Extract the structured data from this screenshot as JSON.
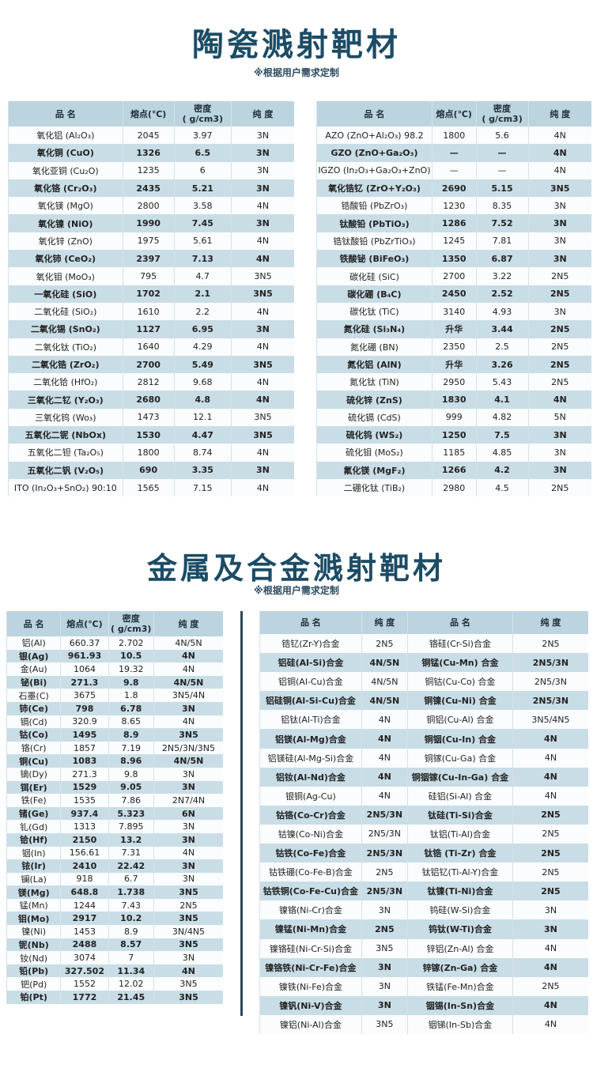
{
  "ceramic": {
    "title": "陶瓷溅射靶材",
    "subtitle": "※根据用户需求定制",
    "headers": [
      "品 名",
      "熔点(℃)",
      "密度\n( g/cm3)",
      "纯 度"
    ],
    "left_rows": [
      [
        "氧化铝 (Al₂O₃)",
        "2045",
        "3.97",
        "3N"
      ],
      [
        "氧化铜 (CuO)",
        "1326",
        "6.5",
        "3N"
      ],
      [
        "氧化亚铜 (Cu₂O)",
        "1235",
        "6",
        "3N"
      ],
      [
        "氧化铬 (Cr₂O₃)",
        "2435",
        "5.21",
        "3N"
      ],
      [
        "氧化镁 (MgO)",
        "2800",
        "3.58",
        "4N"
      ],
      [
        "氧化镍 (NiO)",
        "1990",
        "7.45",
        "3N"
      ],
      [
        "氧化锌 (ZnO)",
        "1975",
        "5.61",
        "4N"
      ],
      [
        "氧化铈 (CeO₂)",
        "2397",
        "7.13",
        "4N"
      ],
      [
        "氧化钼 (MoO₃)",
        "795",
        "4.7",
        "3N5"
      ],
      [
        "一氧化硅 (SiO)",
        "1702",
        "2.1",
        "3N5"
      ],
      [
        "二氧化硅 (SiO₂)",
        "1610",
        "2.2",
        "4N"
      ],
      [
        "二氧化锡 (SnO₂)",
        "1127",
        "6.95",
        "3N"
      ],
      [
        "二氧化钛 (TiO₂)",
        "1640",
        "4.29",
        "4N"
      ],
      [
        "二氧化锆 (ZrO₂)",
        "2700",
        "5.49",
        "3N5"
      ],
      [
        "二氧化铪 (HfO₂)",
        "2812",
        "9.68",
        "4N"
      ],
      [
        "三氧化二钇 (Y₂O₃)",
        "2680",
        "4.8",
        "4N"
      ],
      [
        "三氧化钨 (Wo₃)",
        "1473",
        "12.1",
        "3N5"
      ],
      [
        "五氧化二铌 (NbOx)",
        "1530",
        "4.47",
        "3N5"
      ],
      [
        "五氧化二钽 (Ta₂O₅)",
        "1800",
        "8.74",
        "4N"
      ],
      [
        "五氧化二钒 (V₂O₅)",
        "690",
        "3.35",
        "3N"
      ],
      [
        "ITO (In₂O₃+SnO₂) 90:10",
        "1565",
        "7.15",
        "4N"
      ]
    ],
    "right_rows": [
      [
        "AZO (ZnO+Al₂O₃) 98.2",
        "1800",
        "5.6",
        "4N"
      ],
      [
        "GZO (ZnO+Ga₂O₃)",
        "—",
        "—",
        "4N"
      ],
      [
        "IGZO (In₂O₃+Ga₂O₃+ZnO)",
        "—",
        "—",
        "4N"
      ],
      [
        "氧化锆钇 (ZrO+Y₂O₃)",
        "2690",
        "5.15",
        "3N5"
      ],
      [
        "锆酸铅 (PbZrO₃)",
        "1230",
        "8.35",
        "3N"
      ],
      [
        "钛酸铅 (PbTiO₃)",
        "1286",
        "7.52",
        "3N"
      ],
      [
        "锆钛酸铅 (PbZrTiO₃)",
        "1245",
        "7.81",
        "3N"
      ],
      [
        "铁酸铋 (BiFeO₃)",
        "1350",
        "6.87",
        "3N"
      ],
      [
        "碳化硅 (SiC)",
        "2700",
        "3.22",
        "2N5"
      ],
      [
        "碳化硼 (B₄C)",
        "2450",
        "2.52",
        "2N5"
      ],
      [
        "碳化钛 (TiC)",
        "3140",
        "4.93",
        "3N"
      ],
      [
        "氮化硅 (Si₃N₄)",
        "升华",
        "3.44",
        "2N5"
      ],
      [
        "氮化硼 (BN)",
        "2350",
        "2.5",
        "2N5"
      ],
      [
        "氮化铝 (AlN)",
        "升华",
        "3.26",
        "2N5"
      ],
      [
        "氮化钛 (TiN)",
        "2950",
        "5.43",
        "2N5"
      ],
      [
        "硫化锌 (ZnS)",
        "1830",
        "4.1",
        "4N"
      ],
      [
        "硫化镉 (CdS)",
        "999",
        "4.82",
        "5N"
      ],
      [
        "硫化钨 (WS₂)",
        "1250",
        "7.5",
        "3N"
      ],
      [
        "硫化钼 (MoS₂)",
        "1185",
        "4.85",
        "3N"
      ],
      [
        "氟化镁 (MgF₂)",
        "1266",
        "4.2",
        "3N"
      ],
      [
        "二硼化钛 (TiB₂)",
        "2980",
        "4.5",
        "2N5"
      ]
    ]
  },
  "metal": {
    "title": "金属及合金溅射靶材",
    "subtitle": "※根据用户需求定制",
    "left_headers": [
      "品 名",
      "熔点(℃)",
      "密度\n( g/cm3)",
      "纯 度"
    ],
    "left_rows": [
      [
        "铝(Al)",
        "660.37",
        "2.702",
        "4N/5N"
      ],
      [
        "银(Ag)",
        "961.93",
        "10.5",
        "4N"
      ],
      [
        "金(Au)",
        "1064",
        "19.32",
        "4N"
      ],
      [
        "铋(Bi)",
        "271.3",
        "9.8",
        "4N/5N"
      ],
      [
        "石墨(C)",
        "3675",
        "1.8",
        "3N5/4N"
      ],
      [
        "铈(Ce)",
        "798",
        "6.78",
        "3N"
      ],
      [
        "镉(Cd)",
        "320.9",
        "8.65",
        "4N"
      ],
      [
        "钴(Co)",
        "1495",
        "8.9",
        "3N5"
      ],
      [
        "铬(Cr)",
        "1857",
        "7.19",
        "2N5/3N/3N5"
      ],
      [
        "铜(Cu)",
        "1083",
        "8.96",
        "4N/5N"
      ],
      [
        "镝(Dy)",
        "271.3",
        "9.8",
        "3N"
      ],
      [
        "铒(Er)",
        "1529",
        "9.05",
        "3N"
      ],
      [
        "铁(Fe)",
        "1535",
        "7.86",
        "2N7/4N"
      ],
      [
        "锗(Ge)",
        "937.4",
        "5.323",
        "6N"
      ],
      [
        "钆(Gd)",
        "1313",
        "7.895",
        "3N"
      ],
      [
        "铪(Hf)",
        "2150",
        "13.2",
        "3N"
      ],
      [
        "铟(In)",
        "156.61",
        "7.31",
        "4N"
      ],
      [
        "铱(Ir)",
        "2410",
        "22.42",
        "3N"
      ],
      [
        "镧(La)",
        "918",
        "6.7",
        "3N"
      ],
      [
        "镁(Mg)",
        "648.8",
        "1.738",
        "3N5"
      ],
      [
        "锰(Mn)",
        "1244",
        "7.43",
        "2N5"
      ],
      [
        "钼(Mo)",
        "2917",
        "10.2",
        "3N5"
      ],
      [
        "镍(Ni)",
        "1453",
        "8.9",
        "3N/4N5"
      ],
      [
        "铌(Nb)",
        "2488",
        "8.57",
        "3N5"
      ],
      [
        "钕(Nd)",
        "3074",
        "7",
        "3N"
      ],
      [
        "铅(Pb)",
        "327.502",
        "11.34",
        "4N"
      ],
      [
        "钯(Pd)",
        "1552",
        "12.02",
        "3N5"
      ],
      [
        "铂(Pt)",
        "1772",
        "21.45",
        "3N5"
      ]
    ],
    "right_headers": [
      "品 名",
      "纯 度",
      "品 名",
      "纯 度"
    ],
    "right_rows": [
      [
        "锆钇(Zr-Y)合金",
        "2N5",
        "铬硅(Cr-Si)合金",
        "2N5"
      ],
      [
        "铝硅(Al-Si)合金",
        "4N/5N",
        "铜锰(Cu-Mn) 合金",
        "2N5/3N"
      ],
      [
        "铝铜(Al-Cu)合金",
        "4N/5N",
        "铜钴(Cu-Co) 合金",
        "2N5/3N"
      ],
      [
        "铝硅铜(Al-Si-Cu)合金",
        "4N/5N",
        "铜镍(Cu-Ni) 合金",
        "2N5/3N"
      ],
      [
        "铝钛(Al-Ti)合金",
        "4N",
        "铜铝(Cu-Al) 合金",
        "3N5/4N5"
      ],
      [
        "铝镁(Al-Mg)合金",
        "4N",
        "铜铟(Cu-In) 合金",
        "4N"
      ],
      [
        "铝镁硅(Al-Mg-Si)合金",
        "4N",
        "铜镓(Cu-Ga) 合金",
        "4N"
      ],
      [
        "铝钕(Al-Nd)合金",
        "4N",
        "铜铟镓(Cu-In-Ga) 合金",
        "4N"
      ],
      [
        "银铜(Ag-Cu)",
        "4N",
        "硅铝(Si-Al) 合金",
        "4N"
      ],
      [
        "钴铬(Co-Cr)合金",
        "2N5/3N",
        "钛硅(Ti-Si)合金",
        "2N5"
      ],
      [
        "钴镍(Co-Ni)合金",
        "2N5/3N",
        "钛铝(Ti-Al)合金",
        "2N5"
      ],
      [
        "钴铁(Co-Fe)合金",
        "2N5/3N",
        "钛锆 (Ti-Zr) 合金",
        "2N5"
      ],
      [
        "钴铁硼(Co-Fe-B)合金",
        "2N5",
        "钛铝钇(Ti-Al-Y)合金",
        "2N5"
      ],
      [
        "钴铁铜(Co-Fe-Cu)合金",
        "2N5/3N",
        "钛镍(Ti-Ni)合金",
        "2N5"
      ],
      [
        "镍铬(Ni-Cr)合金",
        "3N",
        "钨硅(W-Si)合金",
        "3N"
      ],
      [
        "镍锰(Ni-Mn)合金",
        "2N5",
        "钨钛(W-Ti)合金",
        "3N"
      ],
      [
        "镍铬硅(Ni-Cr-Si)合金",
        "3N5",
        "锌铝(Zn-Al) 合金",
        "4N"
      ],
      [
        "镍铬铁(Ni-Cr-Fe)合金",
        "3N",
        "锌镓(Zn-Ga) 合金",
        "4N"
      ],
      [
        "镍铁(Ni-Fe)合金",
        "3N",
        "铁锰(Fe-Mn)合金",
        "2N5"
      ],
      [
        "镍钒(Ni-V)合金",
        "3N",
        "铟锡(In-Sn)合金",
        "4N"
      ],
      [
        "镍铝(Ni-Al)合金",
        "3N5",
        "铟锑(In-Sb)合金",
        "4N"
      ]
    ]
  },
  "colors": {
    "title": "#1c4c66",
    "header_bg": "#bcd4df",
    "stripe_bg": "#c9dde6"
  }
}
